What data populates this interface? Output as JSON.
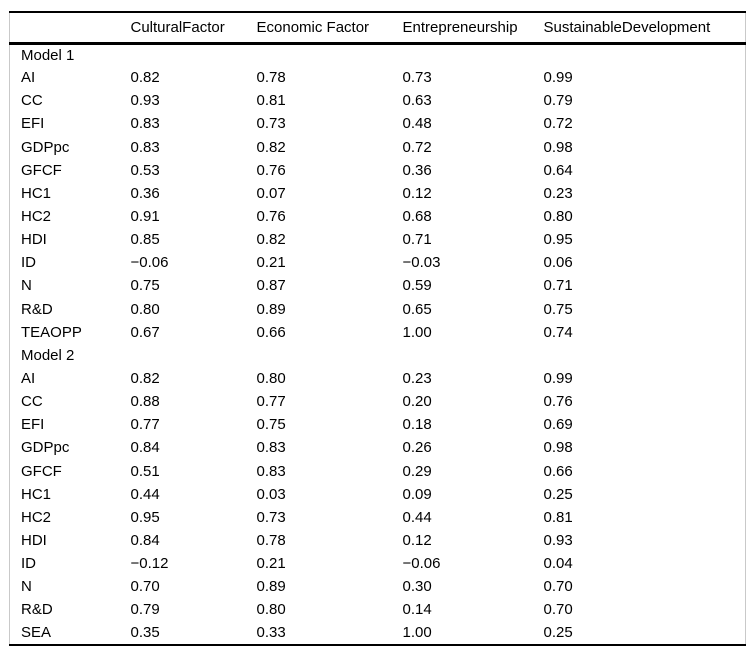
{
  "table": {
    "header": {
      "row_label": "",
      "columns": [
        "CulturalFactor",
        "Economic Factor",
        "Entrepreneurship",
        "SustainableDevelopment"
      ]
    },
    "sections": [
      {
        "label": "Model 1",
        "rows": [
          {
            "label": "AI",
            "values": [
              "0.82",
              "0.78",
              "0.73",
              "0.99"
            ]
          },
          {
            "label": "CC",
            "values": [
              "0.93",
              "0.81",
              "0.63",
              "0.79"
            ]
          },
          {
            "label": "EFI",
            "values": [
              "0.83",
              "0.73",
              "0.48",
              "0.72"
            ]
          },
          {
            "label": "GDPpc",
            "values": [
              "0.83",
              "0.82",
              "0.72",
              "0.98"
            ]
          },
          {
            "label": "GFCF",
            "values": [
              "0.53",
              "0.76",
              "0.36",
              "0.64"
            ]
          },
          {
            "label": "HC1",
            "values": [
              "0.36",
              "0.07",
              "0.12",
              "0.23"
            ]
          },
          {
            "label": "HC2",
            "values": [
              "0.91",
              "0.76",
              "0.68",
              "0.80"
            ]
          },
          {
            "label": "HDI",
            "values": [
              "0.85",
              "0.82",
              "0.71",
              "0.95"
            ]
          },
          {
            "label": "ID",
            "values": [
              "−0.06",
              "0.21",
              "−0.03",
              "0.06"
            ]
          },
          {
            "label": "N",
            "values": [
              "0.75",
              "0.87",
              "0.59",
              "0.71"
            ]
          },
          {
            "label": "R&D",
            "values": [
              "0.80",
              "0.89",
              "0.65",
              "0.75"
            ]
          },
          {
            "label": "TEAOPP",
            "values": [
              "0.67",
              "0.66",
              "1.00",
              "0.74"
            ]
          }
        ]
      },
      {
        "label": "Model 2",
        "rows": [
          {
            "label": "AI",
            "values": [
              "0.82",
              "0.80",
              "0.23",
              "0.99"
            ]
          },
          {
            "label": "CC",
            "values": [
              "0.88",
              "0.77",
              "0.20",
              "0.76"
            ]
          },
          {
            "label": "EFI",
            "values": [
              "0.77",
              "0.75",
              "0.18",
              "0.69"
            ]
          },
          {
            "label": "GDPpc",
            "values": [
              "0.84",
              "0.83",
              "0.26",
              "0.98"
            ]
          },
          {
            "label": "GFCF",
            "values": [
              "0.51",
              "0.83",
              "0.29",
              "0.66"
            ]
          },
          {
            "label": "HC1",
            "values": [
              "0.44",
              "0.03",
              "0.09",
              "0.25"
            ]
          },
          {
            "label": "HC2",
            "values": [
              "0.95",
              "0.73",
              "0.44",
              "0.81"
            ]
          },
          {
            "label": "HDI",
            "values": [
              "0.84",
              "0.78",
              "0.12",
              "0.93"
            ]
          },
          {
            "label": "ID",
            "values": [
              "−0.12",
              "0.21",
              "−0.06",
              "0.04"
            ]
          },
          {
            "label": "N",
            "values": [
              "0.70",
              "0.89",
              "0.30",
              "0.70"
            ]
          },
          {
            "label": "R&D",
            "values": [
              "0.79",
              "0.80",
              "0.14",
              "0.70"
            ]
          },
          {
            "label": "SEA",
            "values": [
              "0.35",
              "0.33",
              "1.00",
              "0.25"
            ]
          }
        ]
      }
    ],
    "colors": {
      "rule": "#000000",
      "side_border": "#c9c9c9",
      "text": "#000000",
      "background": "#ffffff"
    }
  }
}
